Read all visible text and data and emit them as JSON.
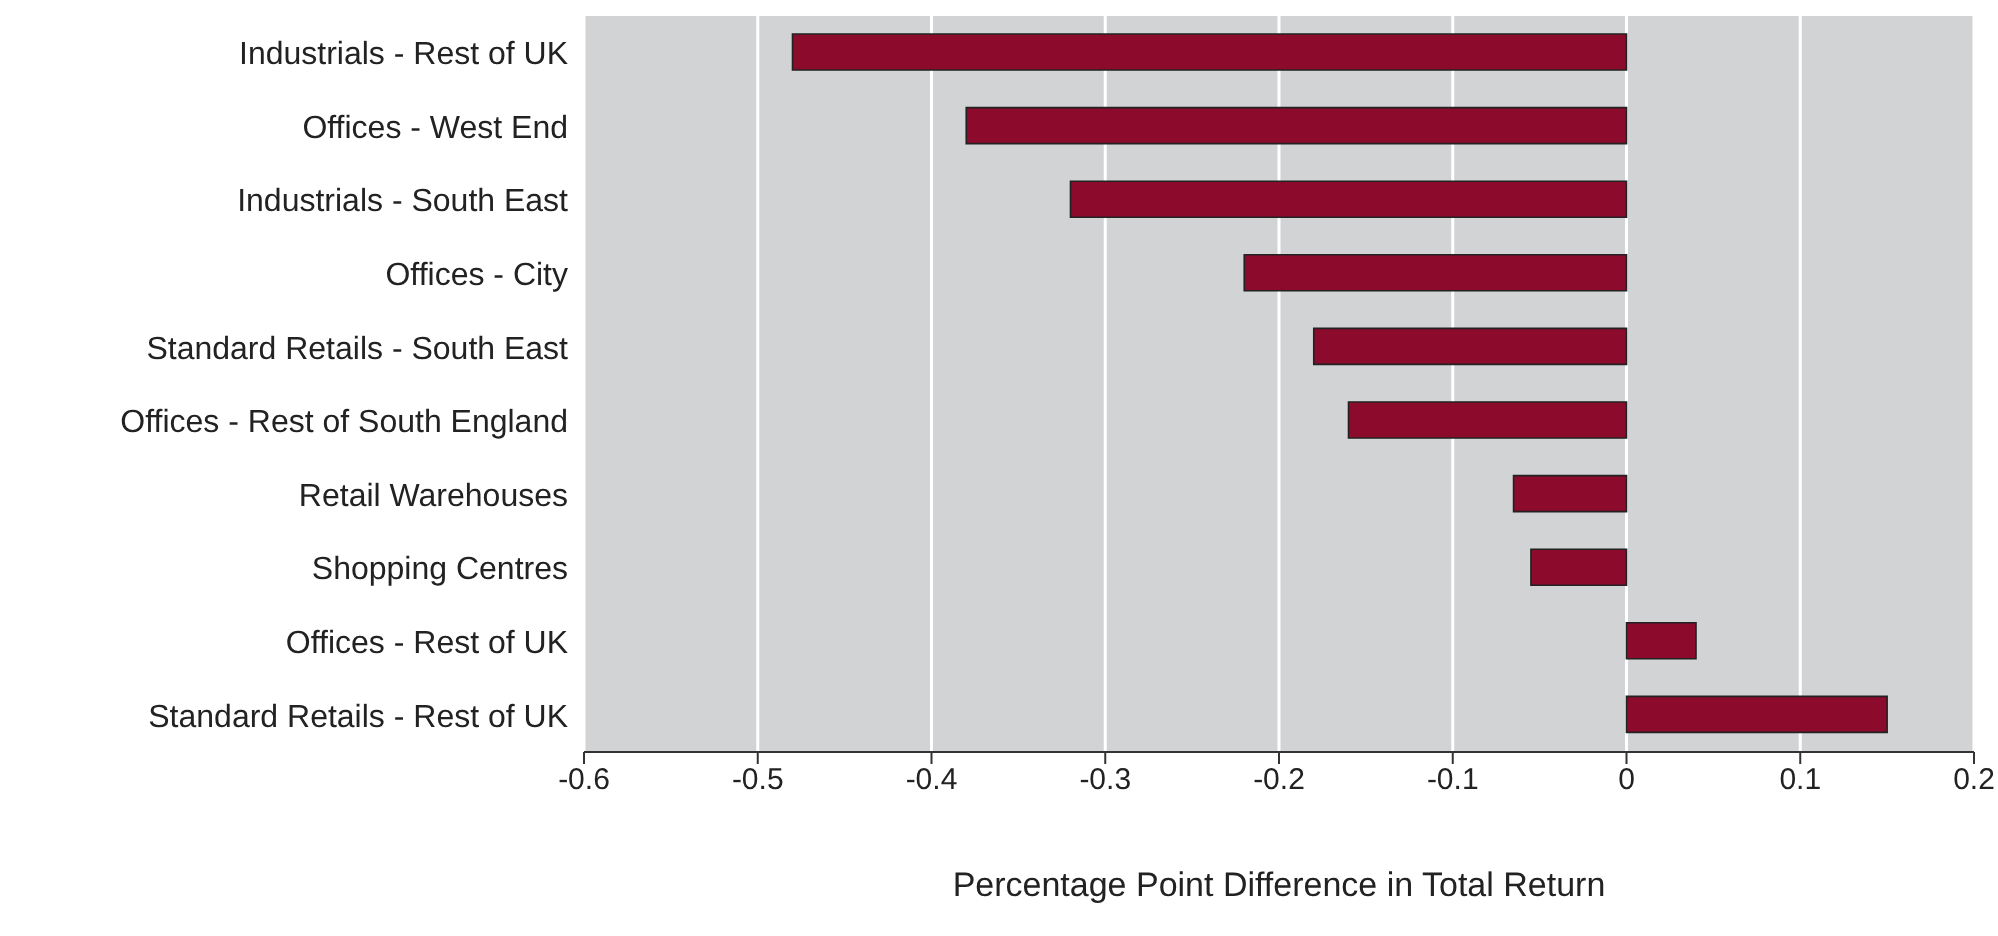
{
  "chart_data": {
    "type": "bar",
    "orientation": "horizontal",
    "xlabel": "Percentage Point Difference in Total Return",
    "categories": [
      "Industrials - Rest of UK",
      "Offices - West End",
      "Industrials - South East",
      "Offices - City",
      "Standard Retails - South East",
      "Offices - Rest of South England",
      "Retail Warehouses",
      "Shopping Centres",
      "Offices - Rest of UK",
      "Standard Retails - Rest of UK"
    ],
    "values": [
      -0.48,
      -0.38,
      -0.32,
      -0.22,
      -0.18,
      -0.16,
      -0.065,
      -0.055,
      0.04,
      0.15
    ],
    "color": "#8c0a2c",
    "xlim": [
      -0.6,
      0.2
    ],
    "xticks": [
      -0.6,
      -0.5,
      -0.4,
      -0.3,
      -0.2,
      -0.1,
      0,
      0.1,
      0.2
    ],
    "grid": "x",
    "legend": false
  }
}
